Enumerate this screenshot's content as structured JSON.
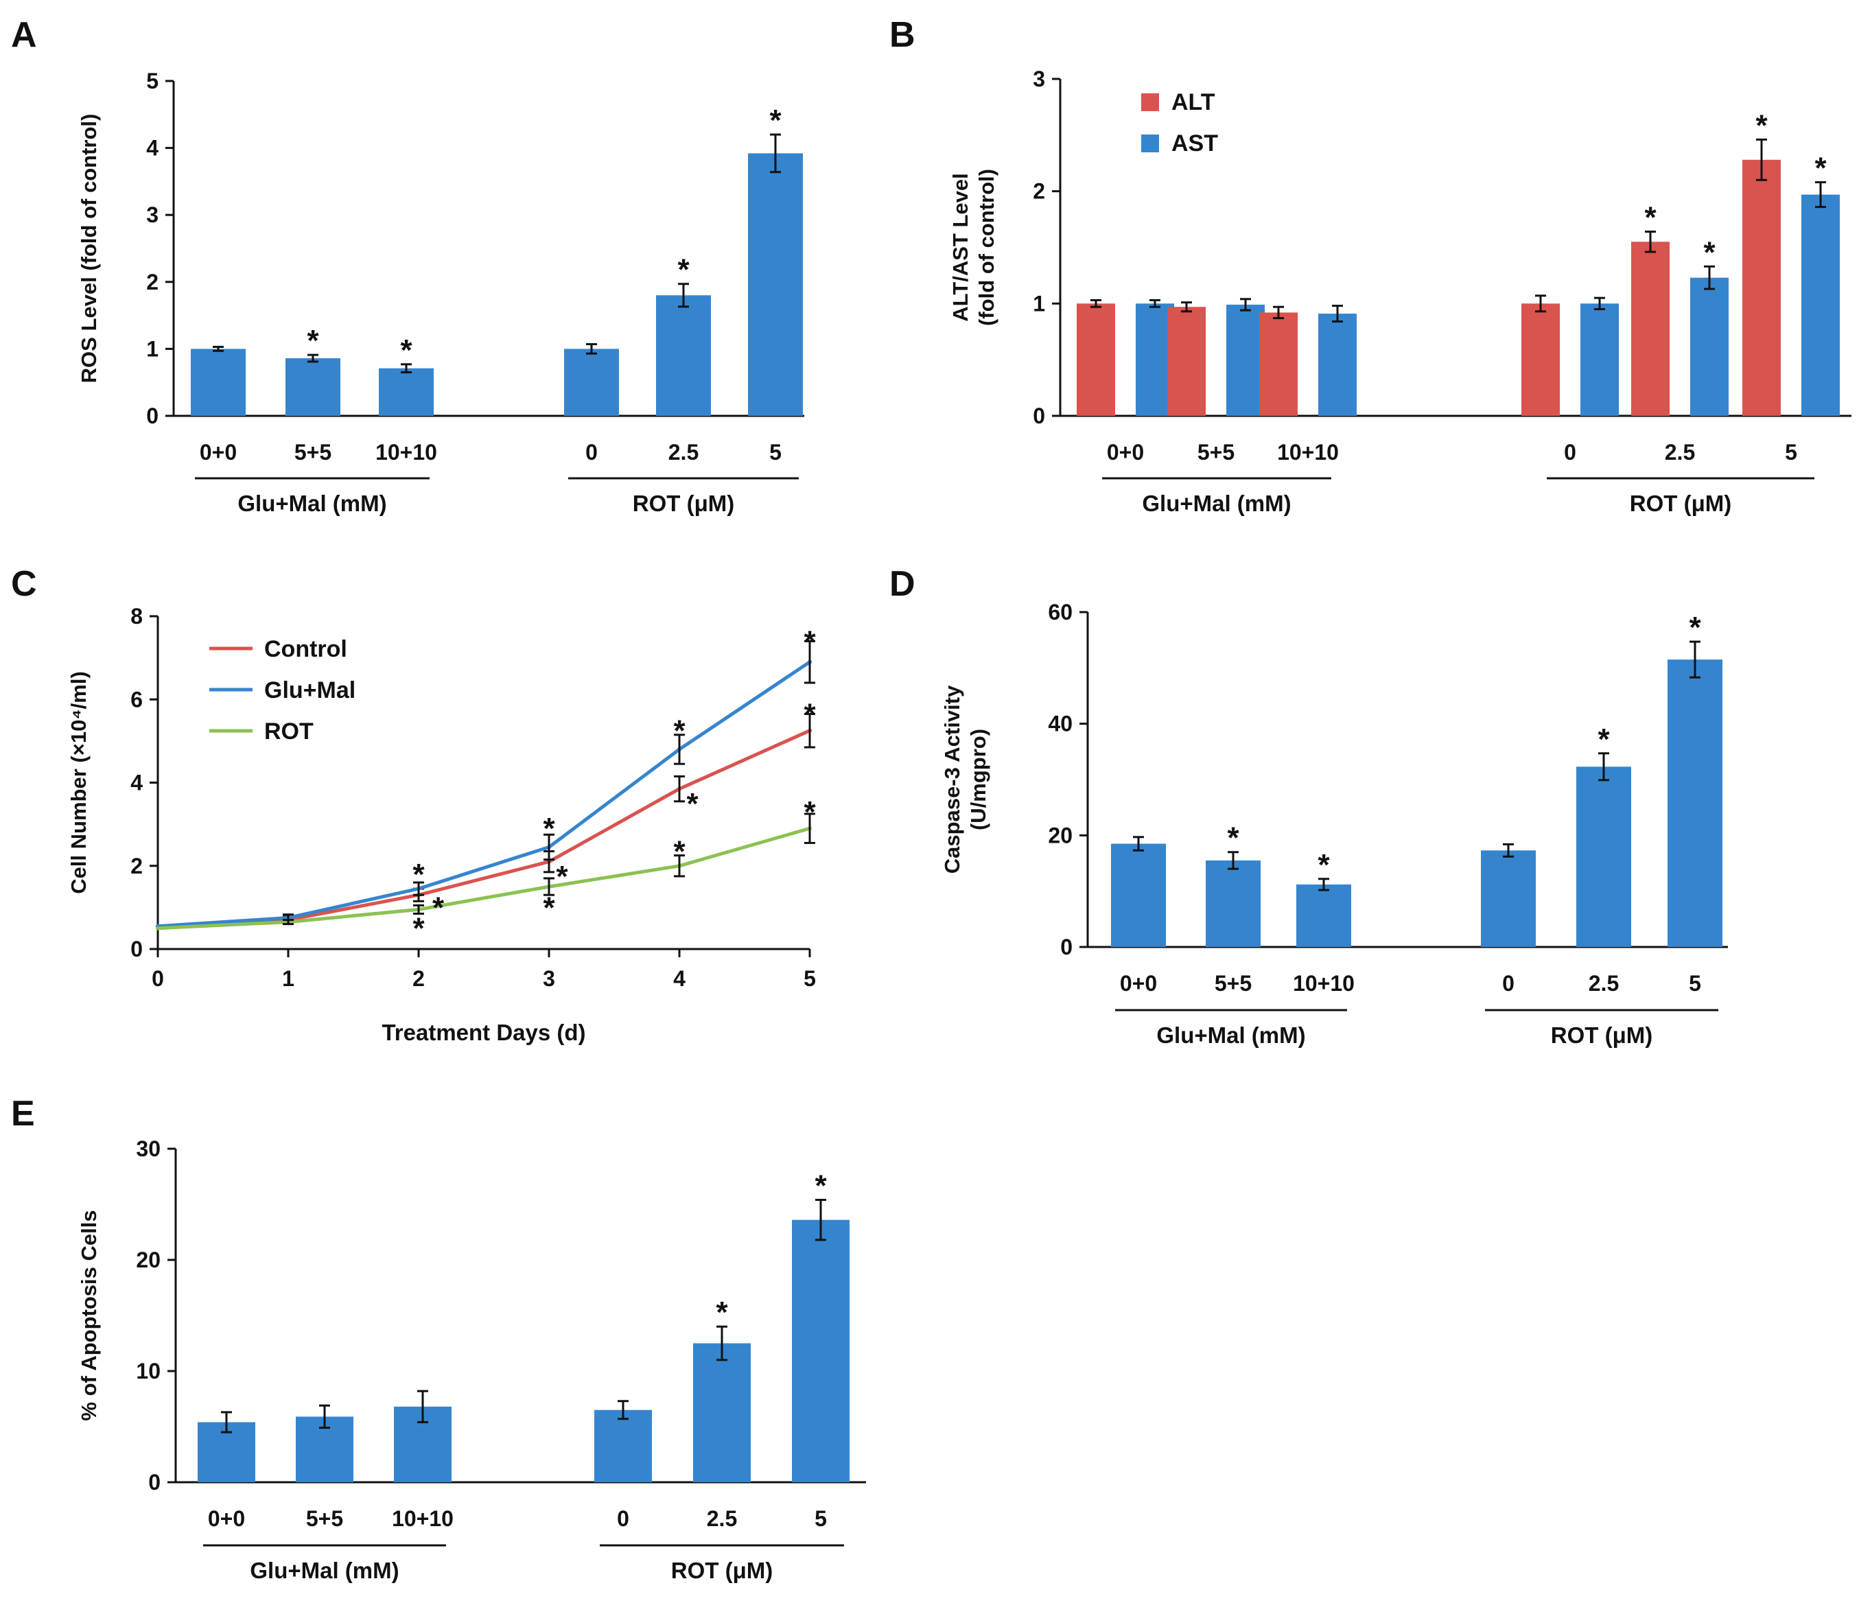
{
  "colors": {
    "blue": "#3585ce",
    "red": "#d9534f",
    "green": "#8cc152",
    "axis": "#111111"
  },
  "chart_data": [
    {
      "panel": "A",
      "type": "bar",
      "ylabel": "ROS Level (fold of  control)",
      "ylim": [
        0,
        5
      ],
      "yticks": [
        0,
        1,
        2,
        3,
        4,
        5
      ],
      "categories": [
        "0+0",
        "5+5",
        "10+10",
        "0",
        "2.5",
        "5"
      ],
      "values": [
        1.0,
        0.86,
        0.71,
        1.0,
        1.8,
        3.92
      ],
      "errors": [
        0.03,
        0.05,
        0.06,
        0.07,
        0.17,
        0.28
      ],
      "significant": [
        false,
        true,
        true,
        false,
        true,
        true
      ],
      "groups": [
        {
          "label": "Glu+Mal (mM)",
          "from": 0,
          "to": 2
        },
        {
          "label": "ROT (μM)",
          "from": 3,
          "to": 5
        }
      ]
    },
    {
      "panel": "B",
      "type": "bar",
      "ylabel": "ALT/AST Level",
      "ylabel2": "(fold of  control)",
      "ylim": [
        0,
        3
      ],
      "yticks": [
        0,
        1,
        2,
        3
      ],
      "categories": [
        "0+0",
        "5+5",
        "10+10",
        "0",
        "2.5",
        "5"
      ],
      "series": [
        {
          "name": "ALT",
          "values": [
            1.0,
            0.97,
            0.92,
            1.0,
            1.55,
            2.28
          ],
          "errors": [
            0.03,
            0.04,
            0.05,
            0.07,
            0.09,
            0.18
          ],
          "significant": [
            false,
            false,
            false,
            false,
            true,
            true
          ]
        },
        {
          "name": "AST",
          "values": [
            1.0,
            0.99,
            0.91,
            1.0,
            1.23,
            1.97
          ],
          "errors": [
            0.03,
            0.05,
            0.07,
            0.05,
            0.1,
            0.11
          ],
          "significant": [
            false,
            false,
            false,
            false,
            true,
            true
          ]
        }
      ],
      "legend": "top-left",
      "groups": [
        {
          "label": "Glu+Mal (mM)",
          "from": 0,
          "to": 2
        },
        {
          "label": "ROT (μM)",
          "from": 3,
          "to": 5
        }
      ]
    },
    {
      "panel": "C",
      "type": "line",
      "xlabel": "Treatment Days (d)",
      "ylabel": "Cell Number (×10⁴/ml)",
      "xlim": [
        0,
        5
      ],
      "ylim": [
        0,
        8
      ],
      "xticks": [
        0,
        1,
        2,
        3,
        4,
        5
      ],
      "yticks": [
        0,
        2,
        4,
        6,
        8
      ],
      "x": [
        0,
        1,
        2,
        3,
        4,
        5
      ],
      "series": [
        {
          "name": "Control",
          "values": [
            0.55,
            0.7,
            1.3,
            2.1,
            3.85,
            5.25
          ],
          "errors": [
            0.05,
            0.08,
            0.15,
            0.25,
            0.3,
            0.4
          ]
        },
        {
          "name": "Glu+Mal",
          "values": [
            0.55,
            0.75,
            1.45,
            2.45,
            4.8,
            6.9
          ],
          "errors": [
            0.05,
            0.08,
            0.15,
            0.3,
            0.35,
            0.5
          ]
        },
        {
          "name": "ROT",
          "values": [
            0.5,
            0.65,
            0.95,
            1.5,
            2.0,
            2.9
          ],
          "errors": [
            0.05,
            0.05,
            0.1,
            0.2,
            0.25,
            0.35
          ]
        }
      ],
      "star_labels": [
        {
          "x": 2,
          "y": 1.85
        },
        {
          "x": 2,
          "y": 0.55
        },
        {
          "x": 2.15,
          "y": 1.05
        },
        {
          "x": 3,
          "y": 2.95
        },
        {
          "x": 3,
          "y": 1.05
        },
        {
          "x": 3.1,
          "y": 1.8
        },
        {
          "x": 4,
          "y": 5.3
        },
        {
          "x": 4.1,
          "y": 3.55
        },
        {
          "x": 4,
          "y": 2.4
        },
        {
          "x": 5,
          "y": 7.45
        },
        {
          "x": 5,
          "y": 5.7
        },
        {
          "x": 5,
          "y": 3.35
        }
      ],
      "legend": "top-left"
    },
    {
      "panel": "D",
      "type": "bar",
      "ylabel": "Caspase-3 Activity",
      "ylabel2": "(U/mgpro)",
      "ylim": [
        0,
        60
      ],
      "yticks": [
        0,
        20,
        40,
        60
      ],
      "categories": [
        "0+0",
        "5+5",
        "10+10",
        "0",
        "2.5",
        "5"
      ],
      "values": [
        18.5,
        15.5,
        11.2,
        17.3,
        32.3,
        51.5
      ],
      "errors": [
        1.2,
        1.5,
        1.0,
        1.1,
        2.4,
        3.2
      ],
      "significant": [
        false,
        true,
        true,
        false,
        true,
        true
      ],
      "groups": [
        {
          "label": "Glu+Mal (mM)",
          "from": 0,
          "to": 2
        },
        {
          "label": "ROT (μM)",
          "from": 3,
          "to": 5
        }
      ]
    },
    {
      "panel": "E",
      "type": "bar",
      "ylabel": "% of Apoptosis Cells",
      "ylim": [
        0,
        30
      ],
      "yticks": [
        0,
        10,
        20,
        30
      ],
      "categories": [
        "0+0",
        "5+5",
        "10+10",
        "0",
        "2.5",
        "5"
      ],
      "values": [
        5.4,
        5.9,
        6.8,
        6.5,
        12.5,
        23.6
      ],
      "errors": [
        0.9,
        1.0,
        1.4,
        0.8,
        1.5,
        1.8
      ],
      "significant": [
        false,
        false,
        false,
        false,
        true,
        true
      ],
      "groups": [
        {
          "label": "Glu+Mal (mM)",
          "from": 0,
          "to": 2
        },
        {
          "label": "ROT (μM)",
          "from": 3,
          "to": 5
        }
      ]
    }
  ]
}
